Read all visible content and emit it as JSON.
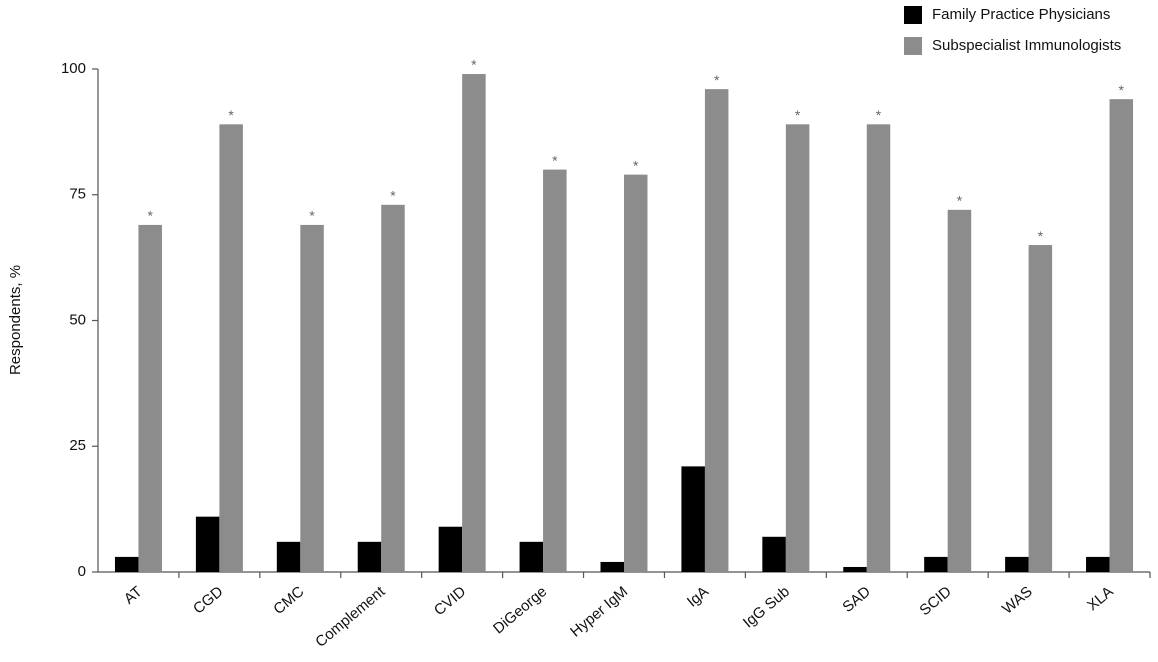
{
  "chart_data": {
    "type": "bar",
    "y_label": "Respondents, %",
    "categories": [
      "AT",
      "CGD",
      "CMC",
      "Complement",
      "CVID",
      "DiGeorge",
      "Hyper IgM",
      "IgA",
      "IgG Sub",
      "SAD",
      "SCID",
      "WAS",
      "XLA"
    ],
    "series": [
      {
        "name": "Family Practice Physicians",
        "color": "#000000",
        "values": [
          3,
          11,
          6,
          6,
          9,
          6,
          2,
          21,
          7,
          1,
          3,
          3,
          3
        ]
      },
      {
        "name": "Subspecialist Immunologists",
        "color": "#8c8c8c",
        "values": [
          69,
          89,
          69,
          73,
          99,
          80,
          79,
          96,
          89,
          89,
          72,
          65,
          94
        ],
        "annotations": [
          "*",
          "*",
          "*",
          "*",
          "*",
          "*",
          "*",
          "*",
          "*",
          "*",
          "*",
          "*",
          "*"
        ]
      }
    ],
    "ylim": [
      0,
      100
    ],
    "yticks": [
      0,
      25,
      50,
      75,
      100
    ],
    "grid": false,
    "legend": "top-right"
  }
}
